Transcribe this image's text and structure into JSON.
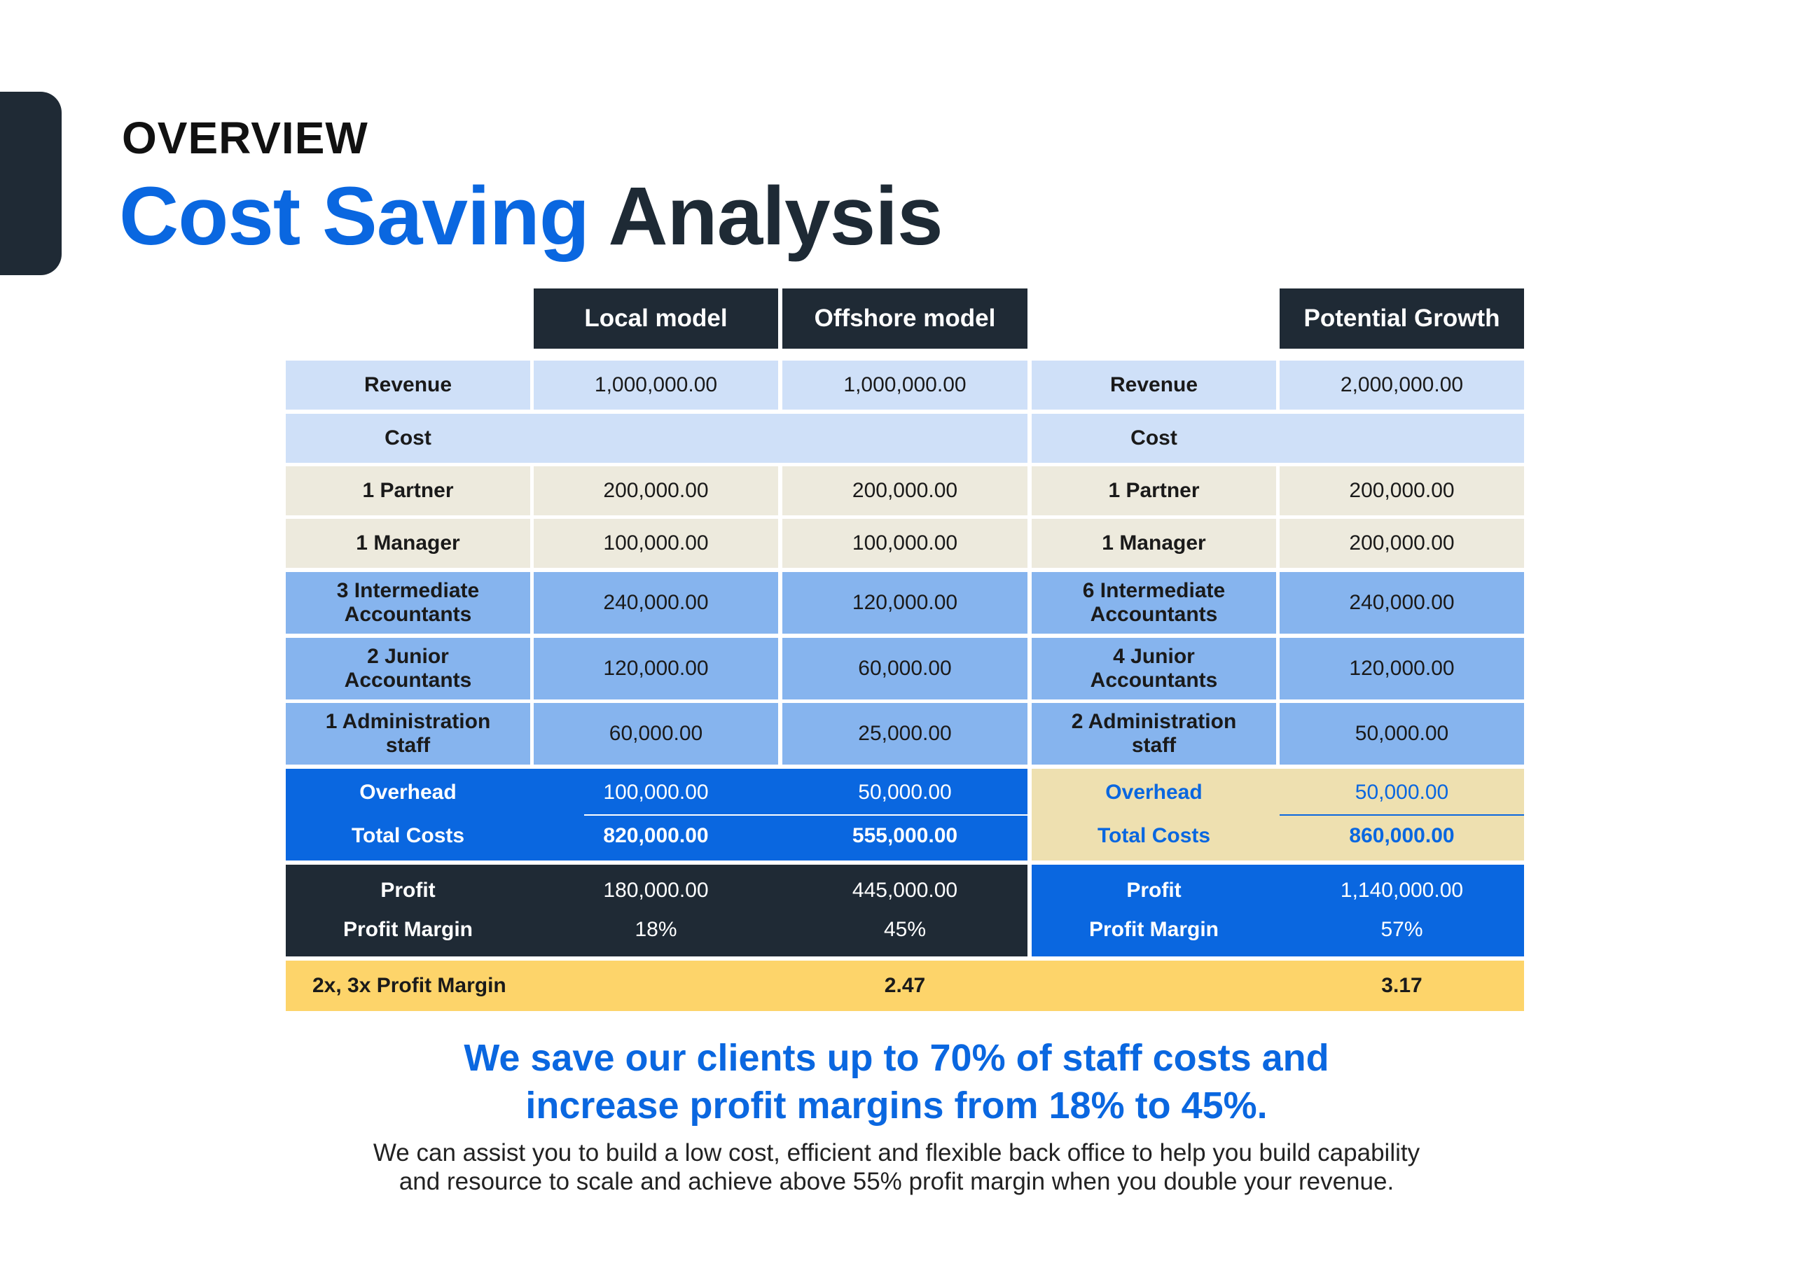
{
  "header": {
    "overline": "OVERVIEW",
    "title_highlight": "Cost Saving",
    "title_rest": "Analysis"
  },
  "table": {
    "columns": {
      "local": "Local model",
      "offshore": "Offshore model",
      "growth": "Potential Growth"
    },
    "rows": [
      {
        "label": "Revenue",
        "local": "1,000,000.00",
        "offshore": "1,000,000.00",
        "growth_label": "Revenue",
        "growth": "2,000,000.00"
      },
      {
        "label": "Cost",
        "growth_label": "Cost"
      },
      {
        "label": "1 Partner",
        "local": "200,000.00",
        "offshore": "200,000.00",
        "growth_label": "1 Partner",
        "growth": "200,000.00"
      },
      {
        "label": "1 Manager",
        "local": "100,000.00",
        "offshore": "100,000.00",
        "growth_label": "1 Manager",
        "growth": "200,000.00"
      },
      {
        "label": "3 Intermediate Accountants",
        "local": "240,000.00",
        "offshore": "120,000.00",
        "growth_label": "6 Intermediate Accountants",
        "growth": "240,000.00"
      },
      {
        "label": "2 Junior Accountants",
        "local": "120,000.00",
        "offshore": "60,000.00",
        "growth_label": "4 Junior Accountants",
        "growth": "120,000.00"
      },
      {
        "label": "1 Administration staff",
        "local": "60,000.00",
        "offshore": "25,000.00",
        "growth_label": "2 Administration staff",
        "growth": "50,000.00"
      }
    ],
    "overhead": {
      "label": "Overhead",
      "local": "100,000.00",
      "offshore": "50,000.00",
      "growth_label": "Overhead",
      "growth": "50,000.00"
    },
    "total_costs": {
      "label": "Total Costs",
      "local": "820,000.00",
      "offshore": "555,000.00",
      "growth_label": "Total Costs",
      "growth": "860,000.00"
    },
    "profit": {
      "label": "Profit",
      "local": "180,000.00",
      "offshore": "445,000.00",
      "growth_label": "Profit",
      "growth": "1,140,000.00"
    },
    "profit_margin": {
      "label": "Profit Margin",
      "local": "18%",
      "offshore": "45%",
      "growth_label": "Profit Margin",
      "growth": "57%"
    },
    "multiplier": {
      "label": "2x, 3x Profit Margin",
      "offshore": "2.47",
      "growth": "3.17"
    }
  },
  "footer": {
    "headline_line1": "We save our clients up to 70% of staff costs and",
    "headline_line2": "increase profit margins from 18% to 45%.",
    "body_line1": "We can assist you to build a low cost, efficient and flexible back office to help you build capability",
    "body_line2": "and resource to scale and achieve above 55% profit margin when you double your revenue."
  },
  "colors": {
    "brand_blue": "#0a67e0",
    "dark_navy": "#1f2a35",
    "light_blue": "#cfe0f8",
    "mid_blue": "#86b4ee",
    "beige": "#edeadd",
    "tan": "#eee0b0",
    "gold": "#fdd46a"
  }
}
